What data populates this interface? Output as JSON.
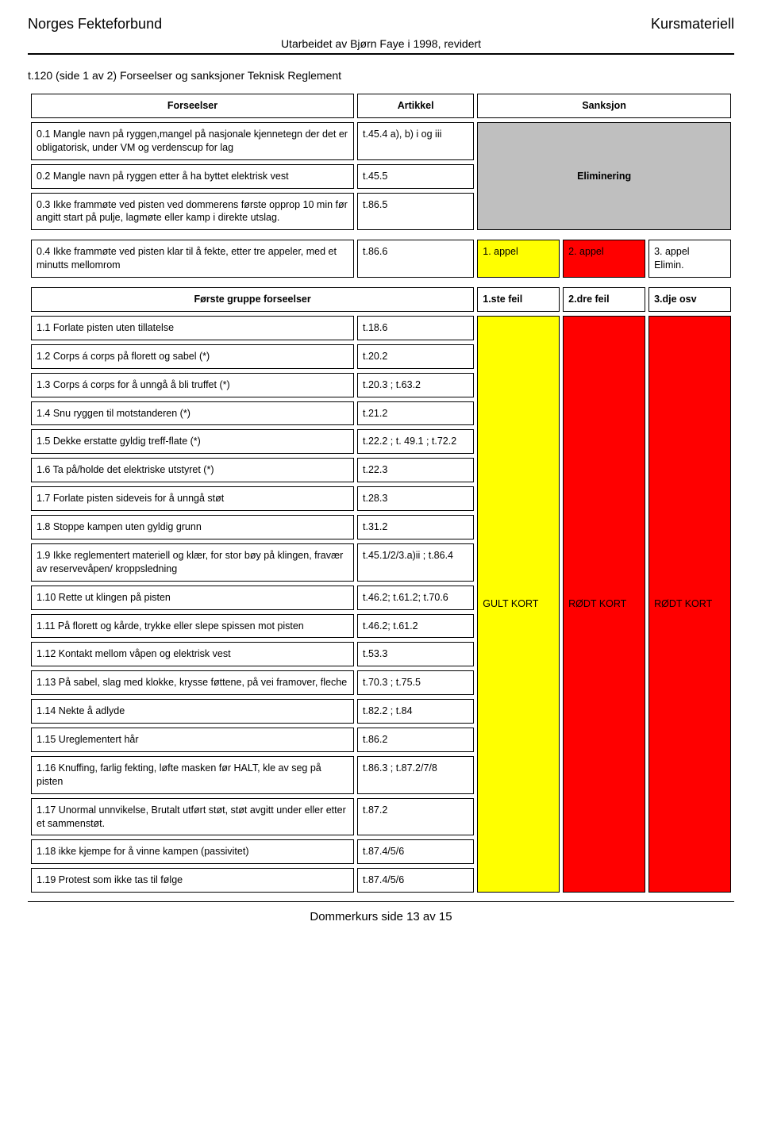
{
  "header": {
    "left": "Norges Fekteforbund",
    "right": "Kursmateriell",
    "sub": "Utarbeidet av Bjørn Faye i 1998, revidert"
  },
  "title": "t.120 (side 1 av 2) Forseelser og sanksjoner Teknisk Reglement",
  "columns": {
    "forseelser": "Forseelser",
    "artikkel": "Artikkel",
    "sanksjon": "Sanksjon"
  },
  "section0": {
    "r1_desc": "0.1 Mangle navn på ryggen,mangel på nasjonale kjennetegn der det er obligatorisk, under VM og verdenscup for lag",
    "r1_art": "t.45.4 a), b) i og iii",
    "r2_desc": "0.2 Mangle navn på ryggen etter å ha byttet elektrisk vest",
    "r2_art": "t.45.5",
    "r3_desc": "0.3 Ikke frammøte ved pisten ved dommerens første opprop 10 min før angitt start på pulje, lagmøte eller kamp i direkte utslag.",
    "r3_art": "t.86.5",
    "elim": "Eliminering",
    "r4_desc": "0.4 Ikke frammøte ved pisten klar til å fekte, etter tre appeler, med et minutts mellomrom",
    "r4_art": "t.86.6",
    "r4_s1": "1. appel",
    "r4_s2": "2. appel",
    "r4_s3a": "3. appel",
    "r4_s3b": "Elimin."
  },
  "group1_header": {
    "title": "Første gruppe forseelser",
    "c1": "1.ste feil",
    "c2": "2.dre feil",
    "c3": "3.dje osv"
  },
  "group1": {
    "r1_d": "1.1 Forlate pisten uten tillatelse",
    "r1_a": "t.18.6",
    "r2_d": "1.2 Corps á corps på florett og sabel (*)",
    "r2_a": "t.20.2",
    "r3_d": "1.3 Corps á corps for å unngå å bli truffet (*)",
    "r3_a": "t.20.3 ; t.63.2",
    "r4_d": "1.4 Snu ryggen til motstanderen (*)",
    "r4_a": "t.21.2",
    "r5_d": "1.5 Dekke erstatte gyldig treff-flate (*)",
    "r5_a": "t.22.2 ; t. 49.1 ; t.72.2",
    "r6_d": "1.6 Ta på/holde det elektriske utstyret (*)",
    "r6_a": "t.22.3",
    "r7_d": "1.7 Forlate pisten sideveis for å unngå støt",
    "r7_a": "t.28.3",
    "r8_d": "1.8 Stoppe kampen uten gyldig grunn",
    "r8_a": "t.31.2",
    "r9_d": "1.9 Ikke reglementert materiell og klær, for stor bøy på klingen, fravær av reservevåpen/ kroppsledning",
    "r9_a": "t.45.1/2/3.a)ii ; t.86.4",
    "r10_d": "1.10 Rette ut klingen på pisten",
    "r10_a": "t.46.2; t.61.2; t.70.6",
    "r11_d": "1.11 På florett og kårde, trykke eller slepe spissen mot pisten",
    "r11_a": "t.46.2; t.61.2",
    "r12_d": "1.12 Kontakt mellom våpen og elektrisk vest",
    "r12_a": "t.53.3",
    "r13_d": "1.13 På sabel, slag med klokke, krysse føttene, på vei framover, fleche",
    "r13_a": "t.70.3 ; t.75.5",
    "r14_d": "1.14 Nekte å adlyde",
    "r14_a": "t.82.2 ; t.84",
    "r15_d": "1.15 Ureglementert hår",
    "r15_a": "t.86.2",
    "r16_d": "1.16 Knuffing, farlig fekting, løfte masken før HALT, kle av seg på pisten",
    "r16_a": "t.86.3 ; t.87.2/7/8",
    "r17_d": "1.17 Unormal unnvikelse, Brutalt utført støt, støt avgitt under eller etter et sammenstøt.",
    "r17_a": "t.87.2",
    "r18_d": "1.18 ikke kjempe for å vinne kampen (passivitet)",
    "r18_a": "t.87.4/5/6",
    "r19_d": "1.19 Protest som ikke tas til følge",
    "r19_a": "t.87.4/5/6",
    "gult": "GULT KORT",
    "rodt1": "RØDT KORT",
    "rodt2": "RØDT KORT"
  },
  "footer": "Dommerkurs side 13 av 15",
  "colors": {
    "yellow": "#ffff00",
    "red": "#ff0000",
    "grey": "#bfbfbf",
    "black": "#000000",
    "white": "#ffffff"
  }
}
